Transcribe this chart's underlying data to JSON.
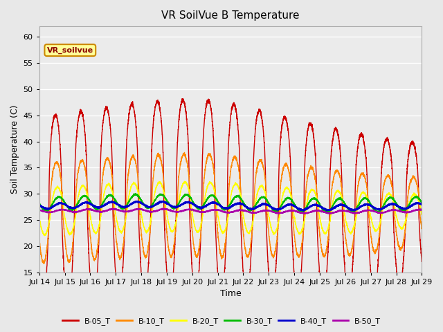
{
  "title": "VR SoilVue B Temperature",
  "xlabel": "Time",
  "ylabel": "Soil Temperature (C)",
  "ylim": [
    15,
    62
  ],
  "yticks": [
    15,
    20,
    25,
    30,
    35,
    40,
    45,
    50,
    55,
    60
  ],
  "xtick_labels": [
    "Jul 14",
    "Jul 15",
    "Jul 16",
    "Jul 17",
    "Jul 18",
    "Jul 19",
    "Jul 20",
    "Jul 21",
    "Jul 22",
    "Jul 23",
    "Jul 24",
    "Jul 25",
    "Jul 26",
    "Jul 27",
    "Jul 28",
    "Jul 29"
  ],
  "annotation_text": "VR_soilvue",
  "legend_labels": [
    "B-05_T",
    "B-10_T",
    "B-20_T",
    "B-30_T",
    "B-40_T",
    "B-50_T"
  ],
  "legend_colors": [
    "#cc0000",
    "#ff8800",
    "#ffff00",
    "#00bb00",
    "#0000cc",
    "#aa00aa"
  ],
  "series_colors": [
    "#cc0000",
    "#ff8800",
    "#ffff00",
    "#00bb00",
    "#0000cc",
    "#aa00aa"
  ],
  "bg_color": "#e8e8e8",
  "plot_bg_color": "#ebebeb",
  "grid_color": "#ffffff",
  "n_days": 15,
  "pts_per_day": 288
}
